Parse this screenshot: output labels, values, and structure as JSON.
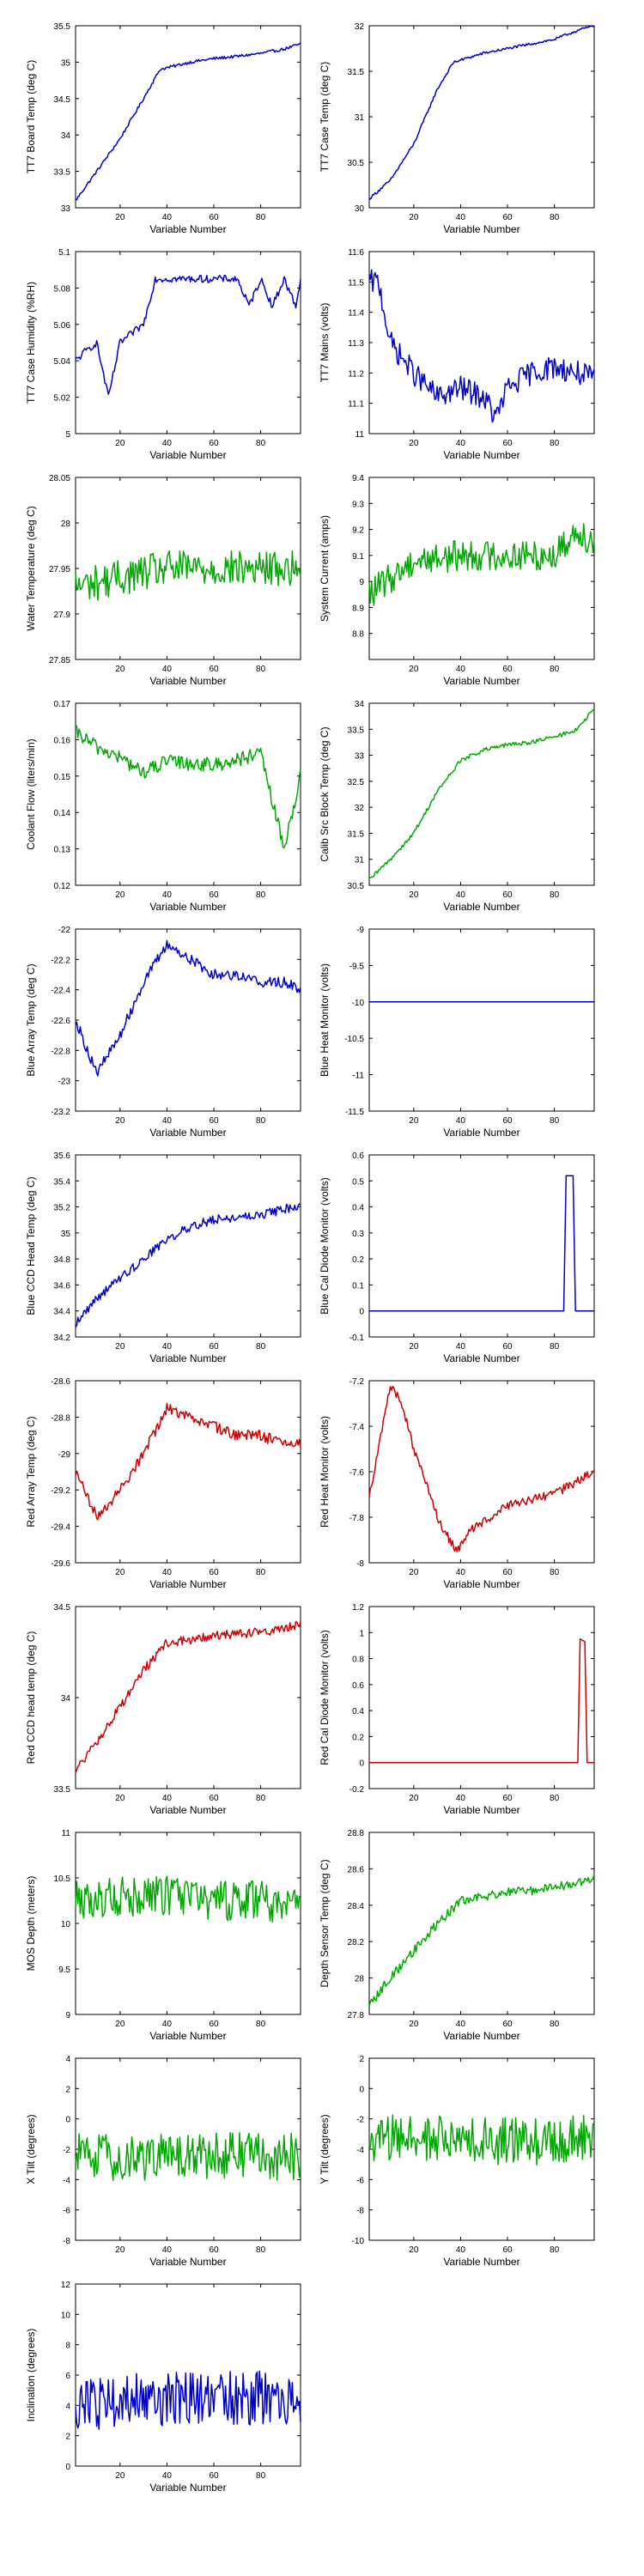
{
  "chart_data": [
    {
      "type": "line",
      "xlabel": "Variable Number",
      "ylabel": "TT7 Board Temp (deg C)",
      "xlim": [
        1,
        97
      ],
      "ylim": [
        33,
        35.5
      ],
      "xticks": [
        20,
        40,
        60,
        80
      ],
      "yticks": [
        33,
        33.5,
        34,
        34.5,
        35,
        35.5
      ],
      "color": "#0000cc",
      "shape": "rise",
      "noise": 0.02,
      "x": [
        1,
        10,
        20,
        30,
        37,
        50,
        60,
        70,
        80,
        90,
        97
      ],
      "y": [
        33.1,
        33.5,
        33.95,
        34.5,
        34.9,
        35.0,
        35.05,
        35.08,
        35.12,
        35.18,
        35.25
      ]
    },
    {
      "type": "line",
      "xlabel": "Variable Number",
      "ylabel": "TT7 Case Temp (deg C)",
      "xlim": [
        1,
        97
      ],
      "ylim": [
        30,
        32
      ],
      "xticks": [
        20,
        40,
        60,
        80
      ],
      "yticks": [
        30,
        30.5,
        31,
        31.5,
        32
      ],
      "color": "#0000cc",
      "shape": "rise",
      "noise": 0.015,
      "x": [
        1,
        10,
        20,
        30,
        37,
        50,
        60,
        70,
        80,
        90,
        97
      ],
      "y": [
        30.1,
        30.3,
        30.7,
        31.3,
        31.6,
        31.7,
        31.75,
        31.8,
        31.85,
        31.95,
        32.0
      ]
    },
    {
      "type": "line",
      "xlabel": "Variable Number",
      "ylabel": "TT7 Case Humidity (%RH)",
      "xlim": [
        1,
        97
      ],
      "ylim": [
        5,
        5.1
      ],
      "xticks": [
        20,
        40,
        60,
        80
      ],
      "yticks": [
        5,
        5.02,
        5.04,
        5.06,
        5.08,
        5.1
      ],
      "color": "#0000cc",
      "shape": "steps",
      "x": [
        1,
        5,
        10,
        15,
        20,
        25,
        30,
        35,
        40,
        50,
        60,
        70,
        75,
        80,
        85,
        90,
        95,
        97
      ],
      "y": [
        5.04,
        5.045,
        5.05,
        5.02,
        5.05,
        5.055,
        5.06,
        5.085,
        5.085,
        5.085,
        5.085,
        5.085,
        5.07,
        5.085,
        5.07,
        5.085,
        5.07,
        5.085
      ]
    },
    {
      "type": "line",
      "xlabel": "Variable Number",
      "ylabel": "TT7 Mains  (volts)",
      "xlim": [
        1,
        97
      ],
      "ylim": [
        11,
        11.6
      ],
      "xticks": [
        20,
        40,
        60,
        80
      ],
      "yticks": [
        11,
        11.1,
        11.2,
        11.3,
        11.4,
        11.5,
        11.6
      ],
      "color": "#0000cc",
      "shape": "noisy",
      "noise": 0.04,
      "x": [
        1,
        5,
        10,
        15,
        20,
        30,
        40,
        50,
        55,
        60,
        70,
        80,
        90,
        97
      ],
      "y": [
        11.5,
        11.5,
        11.3,
        11.25,
        11.2,
        11.12,
        11.15,
        11.12,
        11.05,
        11.15,
        11.2,
        11.22,
        11.2,
        11.18
      ]
    },
    {
      "type": "line",
      "xlabel": "Variable Number",
      "ylabel": "Water Temperature (deg C)",
      "xlim": [
        1,
        97
      ],
      "ylim": [
        27.85,
        28.05
      ],
      "xticks": [
        20,
        40,
        60,
        80
      ],
      "yticks": [
        27.85,
        27.9,
        27.95,
        28,
        28.05
      ],
      "color": "#00aa00",
      "shape": "noisy",
      "noise": 0.02,
      "x": [
        1,
        20,
        40,
        60,
        80,
        97
      ],
      "y": [
        27.93,
        27.94,
        27.95,
        27.95,
        27.95,
        27.95
      ]
    },
    {
      "type": "line",
      "xlabel": "Variable Number",
      "ylabel": "System Current (amps)",
      "xlim": [
        1,
        97
      ],
      "ylim": [
        8.7,
        9.4
      ],
      "xticks": [
        20,
        40,
        60,
        80
      ],
      "yticks": [
        8.8,
        8.9,
        9,
        9.1,
        9.2,
        9.3,
        9.4
      ],
      "color": "#00aa00",
      "shape": "noisy",
      "noise": 0.06,
      "x": [
        1,
        20,
        40,
        60,
        80,
        90,
        97
      ],
      "y": [
        8.95,
        9.08,
        9.1,
        9.1,
        9.1,
        9.2,
        9.15
      ]
    },
    {
      "type": "line",
      "xlabel": "Variable Number",
      "ylabel": "Coolant Flow (liters/min)",
      "xlim": [
        1,
        97
      ],
      "ylim": [
        0.12,
        0.17
      ],
      "xticks": [
        20,
        40,
        60,
        80
      ],
      "yticks": [
        0.12,
        0.13,
        0.14,
        0.15,
        0.16,
        0.17
      ],
      "color": "#00aa00",
      "shape": "noisy",
      "noise": 0.002,
      "x": [
        1,
        10,
        20,
        30,
        40,
        60,
        80,
        90,
        97
      ],
      "y": [
        0.162,
        0.158,
        0.155,
        0.151,
        0.154,
        0.153,
        0.156,
        0.13,
        0.15
      ]
    },
    {
      "type": "line",
      "xlabel": "Variable Number",
      "ylabel": "Calib Src Block Temp (deg C)",
      "xlim": [
        1,
        97
      ],
      "ylim": [
        30.5,
        34
      ],
      "xticks": [
        20,
        40,
        60,
        80
      ],
      "yticks": [
        30.5,
        31,
        31.5,
        32,
        32.5,
        33,
        33.5,
        34
      ],
      "color": "#00aa00",
      "shape": "rise",
      "noise": 0.04,
      "x": [
        1,
        10,
        20,
        30,
        40,
        50,
        60,
        70,
        80,
        90,
        97
      ],
      "y": [
        30.6,
        31.0,
        31.5,
        32.3,
        32.9,
        33.1,
        33.2,
        33.25,
        33.35,
        33.5,
        33.9
      ]
    },
    {
      "type": "line",
      "xlabel": "Variable Number",
      "ylabel": "Blue Array Temp (deg C)",
      "xlim": [
        1,
        97
      ],
      "ylim": [
        -23.2,
        -22
      ],
      "xticks": [
        20,
        40,
        60,
        80
      ],
      "yticks": [
        -23.2,
        -23,
        -22.8,
        -22.6,
        -22.4,
        -22.2,
        -22
      ],
      "color": "#0000cc",
      "shape": "noisy",
      "noise": 0.035,
      "x": [
        1,
        10,
        20,
        30,
        40,
        50,
        60,
        70,
        80,
        90,
        97
      ],
      "y": [
        -22.6,
        -22.95,
        -22.7,
        -22.35,
        -22.1,
        -22.2,
        -22.3,
        -22.3,
        -22.35,
        -22.35,
        -22.4
      ]
    },
    {
      "type": "line",
      "xlabel": "Variable Number",
      "ylabel": "Blue Heat Monitor (volts)",
      "xlim": [
        1,
        97
      ],
      "ylim": [
        -11.5,
        -9
      ],
      "xticks": [
        20,
        40,
        60,
        80
      ],
      "yticks": [
        -11.5,
        -11,
        -10.5,
        -10,
        -9.5,
        -9
      ],
      "color": "#0000cc",
      "shape": "flat",
      "x": [
        1,
        97
      ],
      "y": [
        -10,
        -10
      ]
    },
    {
      "type": "line",
      "xlabel": "Variable Number",
      "ylabel": "Blue CCD Head Temp (deg C)",
      "xlim": [
        1,
        97
      ],
      "ylim": [
        34.2,
        35.6
      ],
      "xticks": [
        20,
        40,
        60,
        80
      ],
      "yticks": [
        34.2,
        34.4,
        34.6,
        34.8,
        35,
        35.2,
        35.4,
        35.6
      ],
      "color": "#0000cc",
      "shape": "rise",
      "noise": 0.035,
      "x": [
        1,
        10,
        20,
        30,
        40,
        50,
        60,
        70,
        80,
        90,
        97
      ],
      "y": [
        34.3,
        34.5,
        34.65,
        34.8,
        34.95,
        35.05,
        35.1,
        35.12,
        35.14,
        35.18,
        35.22
      ]
    },
    {
      "type": "line",
      "xlabel": "Variable Number",
      "ylabel": "Blue Cal Diode Monitor (volts)",
      "xlim": [
        1,
        97
      ],
      "ylim": [
        -0.1,
        0.6
      ],
      "xticks": [
        20,
        40,
        60,
        80
      ],
      "yticks": [
        -0.1,
        0,
        0.1,
        0.2,
        0.3,
        0.4,
        0.5,
        0.6
      ],
      "color": "#0000cc",
      "shape": "spike",
      "x": [
        1,
        84,
        85,
        88,
        89,
        97
      ],
      "y": [
        0,
        0,
        0.52,
        0.52,
        0,
        0
      ]
    },
    {
      "type": "line",
      "xlabel": "Variable Number",
      "ylabel": "Red Array Temp (deg C)",
      "xlim": [
        1,
        97
      ],
      "ylim": [
        -29.6,
        -28.6
      ],
      "xticks": [
        20,
        40,
        60,
        80
      ],
      "yticks": [
        -29.6,
        -29.4,
        -29.2,
        -29,
        -28.8,
        -28.6
      ],
      "color": "#cc0000",
      "shape": "noisy",
      "noise": 0.03,
      "x": [
        1,
        10,
        20,
        30,
        40,
        50,
        60,
        70,
        80,
        90,
        97
      ],
      "y": [
        -29.1,
        -29.35,
        -29.2,
        -29.0,
        -28.75,
        -28.8,
        -28.85,
        -28.9,
        -28.9,
        -28.95,
        -28.95
      ]
    },
    {
      "type": "line",
      "xlabel": "Variable Number",
      "ylabel": "Red Heat Monitor (volts)",
      "xlim": [
        1,
        97
      ],
      "ylim": [
        -8,
        -7.2
      ],
      "xticks": [
        20,
        40,
        60,
        80
      ],
      "yticks": [
        -8,
        -7.8,
        -7.6,
        -7.4,
        -7.2
      ],
      "color": "#cc0000",
      "shape": "noisy",
      "noise": 0.02,
      "x": [
        1,
        5,
        10,
        15,
        20,
        25,
        30,
        38,
        45,
        60,
        80,
        97
      ],
      "y": [
        -7.7,
        -7.5,
        -7.22,
        -7.3,
        -7.5,
        -7.65,
        -7.8,
        -7.95,
        -7.85,
        -7.75,
        -7.7,
        -7.6
      ]
    },
    {
      "type": "line",
      "xlabel": "Variable Number",
      "ylabel": "Red CCD head temp (deg C)",
      "xlim": [
        1,
        97
      ],
      "ylim": [
        33.5,
        34.5
      ],
      "xticks": [
        20,
        40,
        60,
        80
      ],
      "yticks": [
        33.5,
        34,
        34.5
      ],
      "color": "#cc0000",
      "shape": "rise",
      "noise": 0.025,
      "x": [
        1,
        10,
        20,
        30,
        40,
        50,
        60,
        70,
        80,
        90,
        97
      ],
      "y": [
        33.6,
        33.75,
        33.95,
        34.15,
        34.3,
        34.32,
        34.34,
        34.35,
        34.36,
        34.38,
        34.4
      ]
    },
    {
      "type": "line",
      "xlabel": "Variable Number",
      "ylabel": "Red Cal Diode Monitor (volts)",
      "xlim": [
        1,
        97
      ],
      "ylim": [
        -0.2,
        1.2
      ],
      "xticks": [
        20,
        40,
        60,
        80
      ],
      "yticks": [
        -0.2,
        0,
        0.2,
        0.4,
        0.6,
        0.8,
        1,
        1.2
      ],
      "color": "#cc0000",
      "shape": "spike",
      "x": [
        1,
        90,
        91,
        93,
        94,
        97
      ],
      "y": [
        0,
        0,
        0.95,
        0.93,
        0,
        0
      ]
    },
    {
      "type": "line",
      "xlabel": "Variable Number",
      "ylabel": "MOS Depth  (meters)",
      "xlim": [
        1,
        97
      ],
      "ylim": [
        9,
        11
      ],
      "xticks": [
        20,
        40,
        60,
        80
      ],
      "yticks": [
        9,
        9.5,
        10,
        10.5,
        11
      ],
      "color": "#00aa00",
      "shape": "noisy",
      "noise": 0.22,
      "x": [
        1,
        20,
        40,
        60,
        80,
        97
      ],
      "y": [
        10.25,
        10.3,
        10.3,
        10.25,
        10.25,
        10.2
      ]
    },
    {
      "type": "line",
      "xlabel": "Variable Number",
      "ylabel": "Depth Sensor Temp (deg C)",
      "xlim": [
        1,
        97
      ],
      "ylim": [
        27.8,
        28.8
      ],
      "xticks": [
        20,
        40,
        60,
        80
      ],
      "yticks": [
        27.8,
        28,
        28.2,
        28.4,
        28.6,
        28.8
      ],
      "color": "#00aa00",
      "shape": "rise",
      "noise": 0.025,
      "x": [
        1,
        10,
        20,
        30,
        40,
        50,
        60,
        70,
        80,
        90,
        97
      ],
      "y": [
        27.85,
        28.0,
        28.15,
        28.3,
        28.42,
        28.45,
        28.47,
        28.48,
        28.5,
        28.52,
        28.55
      ]
    },
    {
      "type": "line",
      "xlabel": "Variable Number",
      "ylabel": "X Tilt  (degrees)",
      "xlim": [
        1,
        97
      ],
      "ylim": [
        -8,
        4
      ],
      "xticks": [
        20,
        40,
        60,
        80
      ],
      "yticks": [
        -8,
        -6,
        -4,
        -2,
        0,
        2,
        4
      ],
      "color": "#00aa00",
      "shape": "noisy",
      "noise": 1.6,
      "x": [
        1,
        20,
        40,
        60,
        80,
        97
      ],
      "y": [
        -2.5,
        -2.6,
        -2.5,
        -2.5,
        -2.5,
        -2.5
      ]
    },
    {
      "type": "line",
      "xlabel": "Variable Number",
      "ylabel": "Y Tilt  (degrees)",
      "xlim": [
        1,
        97
      ],
      "ylim": [
        -10,
        2
      ],
      "xticks": [
        20,
        40,
        60,
        80
      ],
      "yticks": [
        -10,
        -8,
        -6,
        -4,
        -2,
        0,
        2
      ],
      "color": "#00aa00",
      "shape": "noisy",
      "noise": 1.6,
      "x": [
        1,
        20,
        40,
        60,
        80,
        97
      ],
      "y": [
        -3.5,
        -3.2,
        -3.5,
        -3.5,
        -3.5,
        -3.2
      ]
    },
    {
      "type": "line",
      "xlabel": "Variable Number",
      "ylabel": "Inclination  (degrees)",
      "xlim": [
        1,
        97
      ],
      "ylim": [
        0,
        12
      ],
      "xticks": [
        20,
        40,
        60,
        80
      ],
      "yticks": [
        0,
        2,
        4,
        6,
        8,
        10,
        12
      ],
      "color": "#0000cc",
      "shape": "noisy",
      "noise": 1.8,
      "x": [
        1,
        20,
        40,
        60,
        80,
        97
      ],
      "y": [
        4.0,
        4.2,
        4.5,
        4.5,
        4.5,
        4.4
      ]
    }
  ]
}
